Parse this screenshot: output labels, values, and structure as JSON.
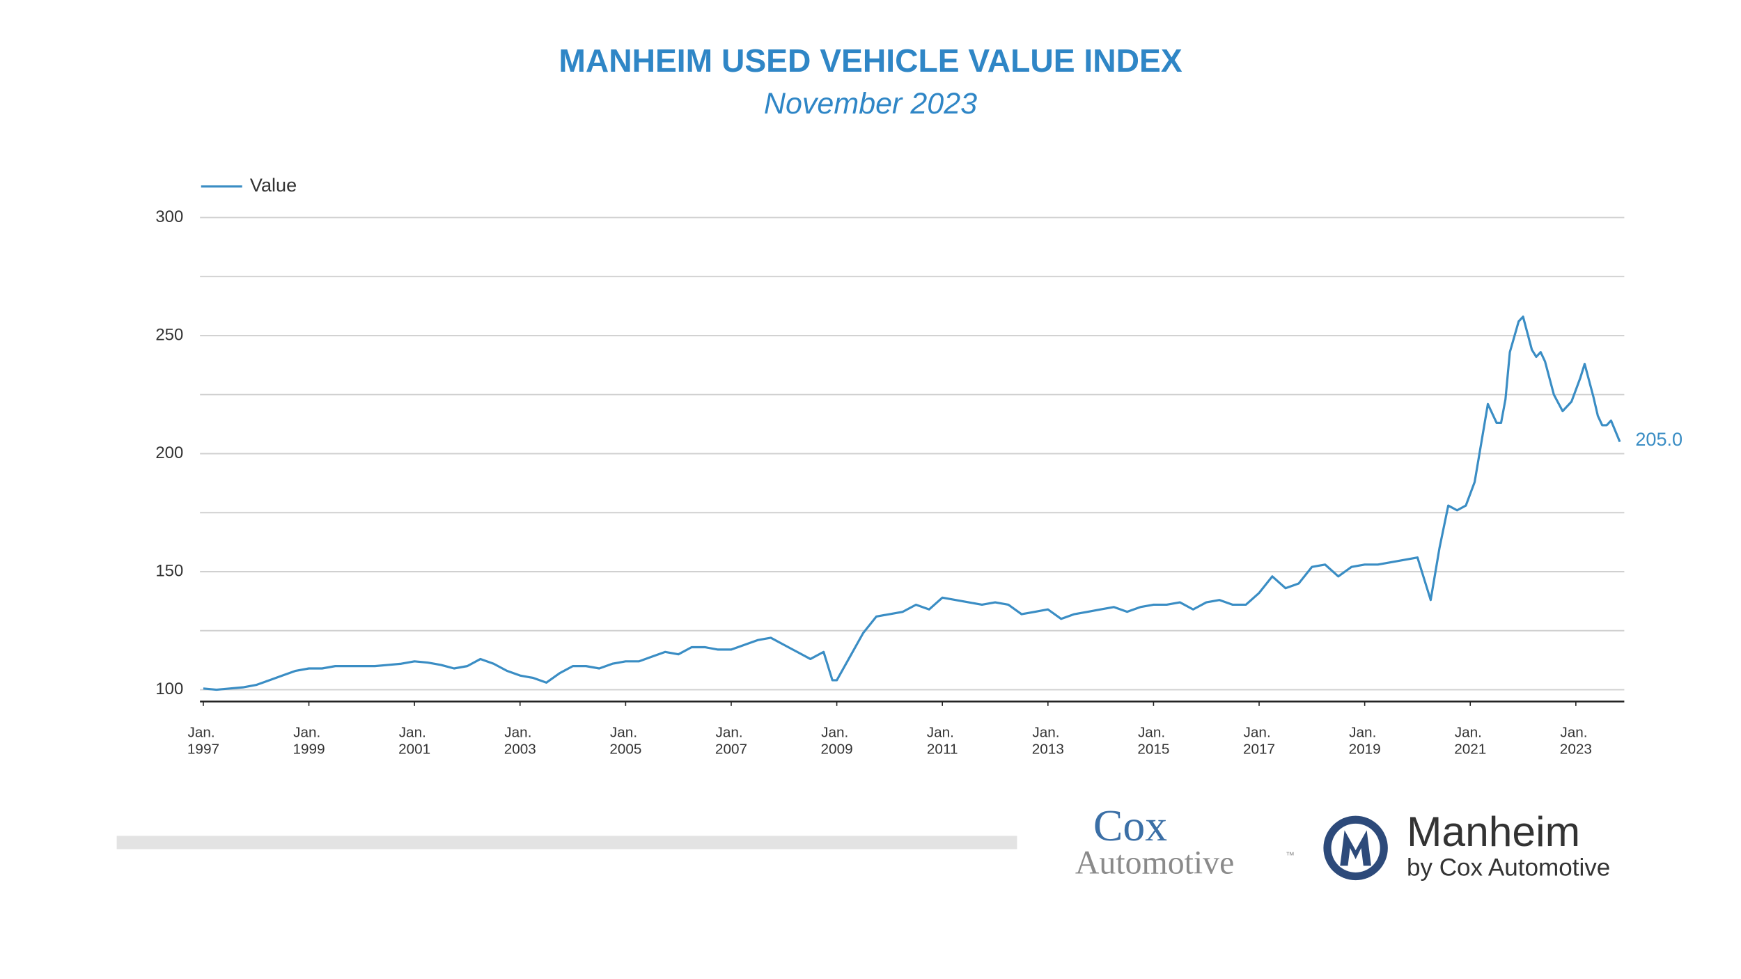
{
  "chart_data": {
    "type": "line",
    "title": "MANHEIM USED VEHICLE VALUE INDEX",
    "subtitle": "November 2023",
    "x": [
      "1997-01",
      "1997-04",
      "1997-07",
      "1997-10",
      "1998-01",
      "1998-04",
      "1998-07",
      "1998-10",
      "1999-01",
      "1999-04",
      "1999-07",
      "1999-10",
      "2000-01",
      "2000-04",
      "2000-07",
      "2000-10",
      "2001-01",
      "2001-04",
      "2001-07",
      "2001-10",
      "2002-01",
      "2002-04",
      "2002-07",
      "2002-10",
      "2003-01",
      "2003-04",
      "2003-07",
      "2003-10",
      "2004-01",
      "2004-04",
      "2004-07",
      "2004-10",
      "2005-01",
      "2005-04",
      "2005-07",
      "2005-10",
      "2006-01",
      "2006-04",
      "2006-07",
      "2006-10",
      "2007-01",
      "2007-04",
      "2007-07",
      "2007-10",
      "2008-01",
      "2008-04",
      "2008-07",
      "2008-10",
      "2008-12",
      "2009-01",
      "2009-04",
      "2009-07",
      "2009-10",
      "2010-01",
      "2010-04",
      "2010-07",
      "2010-10",
      "2011-01",
      "2011-04",
      "2011-07",
      "2011-10",
      "2012-01",
      "2012-04",
      "2012-07",
      "2012-10",
      "2013-01",
      "2013-04",
      "2013-07",
      "2013-10",
      "2014-01",
      "2014-04",
      "2014-07",
      "2014-10",
      "2015-01",
      "2015-04",
      "2015-07",
      "2015-10",
      "2016-01",
      "2016-04",
      "2016-07",
      "2016-10",
      "2017-01",
      "2017-04",
      "2017-07",
      "2017-10",
      "2018-01",
      "2018-04",
      "2018-07",
      "2018-10",
      "2019-01",
      "2019-04",
      "2019-07",
      "2019-10",
      "2020-01",
      "2020-04",
      "2020-06",
      "2020-08",
      "2020-10",
      "2020-12",
      "2021-02",
      "2021-04",
      "2021-05",
      "2021-07",
      "2021-08",
      "2021-09",
      "2021-10",
      "2021-12",
      "2022-01",
      "2022-03",
      "2022-04",
      "2022-05",
      "2022-06",
      "2022-08",
      "2022-10",
      "2022-12",
      "2023-02",
      "2023-03",
      "2023-05",
      "2023-06",
      "2023-07",
      "2023-08",
      "2023-09",
      "2023-11"
    ],
    "series": [
      {
        "name": "Value",
        "color": "#3a8dc4",
        "values": [
          100.5,
          100,
          100.5,
          101,
          102,
          104,
          106,
          108,
          109,
          109,
          110,
          110,
          110,
          110,
          110.5,
          111,
          112,
          111.5,
          110.5,
          109,
          110,
          113,
          111,
          108,
          106,
          105,
          103,
          107,
          110,
          110,
          109,
          111,
          112,
          112,
          114,
          116,
          115,
          118,
          118,
          117,
          117,
          119,
          121,
          122,
          119,
          116,
          113,
          116,
          104,
          104,
          114,
          124,
          131,
          132,
          133,
          136,
          134,
          139,
          138,
          137,
          136,
          137,
          136,
          132,
          133,
          134,
          130,
          132,
          133,
          134,
          135,
          133,
          135,
          136,
          136,
          137,
          134,
          137,
          138,
          136,
          136,
          141,
          148,
          143,
          145,
          152,
          153,
          148,
          152,
          153,
          153,
          154,
          155,
          156,
          138,
          160,
          178,
          176,
          178,
          188,
          210,
          221,
          213,
          213,
          223,
          243,
          256,
          258,
          244,
          241,
          243,
          239,
          225,
          218,
          222,
          232,
          238,
          224,
          216,
          212,
          212,
          214,
          205.0
        ],
        "value_labels": [
          null,
          null,
          null,
          null,
          null,
          null,
          null,
          null,
          null,
          null,
          null,
          null,
          null,
          null,
          null,
          null,
          null,
          null,
          null,
          null,
          null,
          null,
          null,
          null,
          null,
          null,
          null,
          null,
          null,
          null,
          null,
          null,
          null,
          null,
          null,
          null,
          null,
          null,
          null,
          null,
          null,
          null,
          null,
          null,
          null,
          null,
          null,
          null,
          null,
          null,
          null,
          null,
          null,
          null,
          null,
          null,
          null,
          null,
          null,
          null,
          null,
          null,
          null,
          null,
          null,
          null,
          null,
          null,
          null,
          null,
          null,
          null,
          null,
          null,
          null,
          null,
          null,
          null,
          null,
          null,
          null,
          null,
          null,
          null,
          null,
          null,
          null,
          null,
          null,
          null,
          null,
          null,
          null,
          null,
          null,
          null,
          null,
          null,
          null,
          null,
          null,
          null,
          null,
          null,
          null,
          null,
          null,
          null,
          null,
          null,
          null,
          null,
          null,
          null,
          null,
          null,
          null,
          null,
          null,
          null,
          null,
          null,
          "205.0"
        ]
      }
    ],
    "xlim": [
      "1997-01",
      "2023-11"
    ],
    "xticks": [
      {
        "value": "1997-01",
        "label": "Jan. 1997"
      },
      {
        "value": "1999-01",
        "label": "Jan. 1999"
      },
      {
        "value": "2001-01",
        "label": "Jan. 2001"
      },
      {
        "value": "2003-01",
        "label": "Jan. 2003"
      },
      {
        "value": "2005-01",
        "label": "Jan. 2005"
      },
      {
        "value": "2007-01",
        "label": "Jan. 2007"
      },
      {
        "value": "2009-01",
        "label": "Jan. 2009"
      },
      {
        "value": "2011-01",
        "label": "Jan. 2011"
      },
      {
        "value": "2013-01",
        "label": "Jan. 2013"
      },
      {
        "value": "2015-01",
        "label": "Jan. 2015"
      },
      {
        "value": "2017-01",
        "label": "Jan. 2017"
      },
      {
        "value": "2019-01",
        "label": "Jan. 2019"
      },
      {
        "value": "2021-01",
        "label": "Jan. 2021"
      },
      {
        "value": "2023-01",
        "label": "Jan. 2023"
      }
    ],
    "ylim": [
      95,
      300
    ],
    "yticks": [
      100,
      150,
      200,
      250,
      300
    ],
    "grid_lines": [
      100,
      125,
      150,
      175,
      200,
      225,
      250,
      275,
      300
    ],
    "legend": "top-left"
  },
  "branding": {
    "cox": [
      "Cox",
      "Automotive"
    ],
    "cox_tm": "™",
    "manheim": "Manheim",
    "manheim_sub": "by Cox Automotive"
  }
}
